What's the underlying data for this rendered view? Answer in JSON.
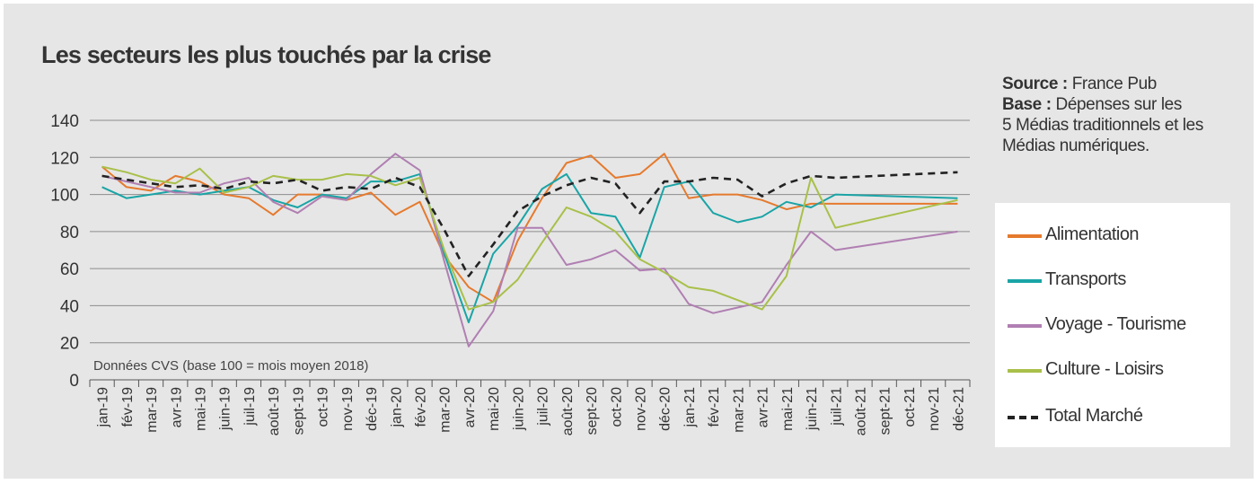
{
  "title": "Les secteurs les plus touchés par la crise",
  "source": {
    "source_label": "Source :",
    "source_value": "France Pub",
    "base_label": "Base :",
    "base_line1": "Dépenses sur les",
    "base_line2": "5 Médias traditionnels et les",
    "base_line3": "Médias numériques."
  },
  "chart_data": {
    "type": "line",
    "annotation": "Données CVS (base 100 = mois moyen 2018)",
    "ylim": [
      0,
      140
    ],
    "yticks": [
      0,
      20,
      40,
      60,
      80,
      100,
      120,
      140
    ],
    "grid": true,
    "legend_position": "right",
    "categories": [
      "jan-19",
      "fév-19",
      "mar-19",
      "avr-19",
      "mai-19",
      "juin-19",
      "juil-19",
      "août-19",
      "sept-19",
      "oct-19",
      "nov-19",
      "déc-19",
      "jan-20",
      "fév-20",
      "mar-20",
      "avr-20",
      "mai-20",
      "juin-20",
      "juil-20",
      "août-20",
      "sept-20",
      "oct-20",
      "nov-20",
      "déc-20",
      "jan-21",
      "fév-21",
      "mar-21",
      "avr-21",
      "mai-21",
      "juin-21",
      "juil-21",
      "août-21",
      "sept-21",
      "oct-21",
      "nov-21",
      "déc-21"
    ],
    "series": [
      {
        "name": "Alimentation",
        "color": "#e57a2e",
        "dashed": false,
        "values": [
          115,
          104,
          102,
          110,
          107,
          100,
          98,
          89,
          100,
          100,
          97,
          101,
          89,
          96,
          67,
          50,
          42,
          75,
          98,
          117,
          121,
          109,
          111,
          122,
          98,
          100,
          100,
          97,
          92,
          95,
          95,
          null,
          null,
          null,
          null,
          95
        ]
      },
      {
        "name": "Transports",
        "color": "#1aa4a6",
        "dashed": false,
        "values": [
          104,
          98,
          100,
          102,
          100,
          102,
          104,
          97,
          93,
          100,
          98,
          107,
          107,
          111,
          68,
          31,
          68,
          83,
          103,
          111,
          90,
          88,
          66,
          104,
          107,
          90,
          85,
          88,
          96,
          93,
          100,
          null,
          null,
          null,
          null,
          98
        ]
      },
      {
        "name": "Voyage - Tourisme",
        "color": "#b07fb2",
        "dashed": false,
        "values": [
          110,
          107,
          104,
          101,
          101,
          106,
          109,
          96,
          90,
          99,
          97,
          111,
          122,
          113,
          64,
          18,
          37,
          82,
          82,
          62,
          65,
          70,
          59,
          60,
          41,
          36,
          39,
          42,
          62,
          80,
          70,
          null,
          null,
          null,
          null,
          80
        ]
      },
      {
        "name": "Culture - Loisirs",
        "color": "#a8c04a",
        "dashed": false,
        "values": [
          115,
          112,
          108,
          106,
          114,
          101,
          104,
          110,
          108,
          108,
          111,
          110,
          105,
          109,
          70,
          38,
          42,
          54,
          74,
          93,
          88,
          80,
          65,
          58,
          50,
          48,
          43,
          38,
          56,
          109,
          82,
          null,
          null,
          null,
          null,
          97
        ]
      },
      {
        "name": "Total Marché",
        "color": "#222222",
        "dashed": true,
        "values": [
          110,
          108,
          106,
          104,
          105,
          103,
          107,
          106,
          108,
          102,
          104,
          103,
          109,
          104,
          81,
          56,
          73,
          91,
          99,
          105,
          109,
          106,
          90,
          107,
          107,
          109,
          108,
          99,
          106,
          110,
          109,
          null,
          null,
          null,
          null,
          112
        ]
      }
    ]
  }
}
